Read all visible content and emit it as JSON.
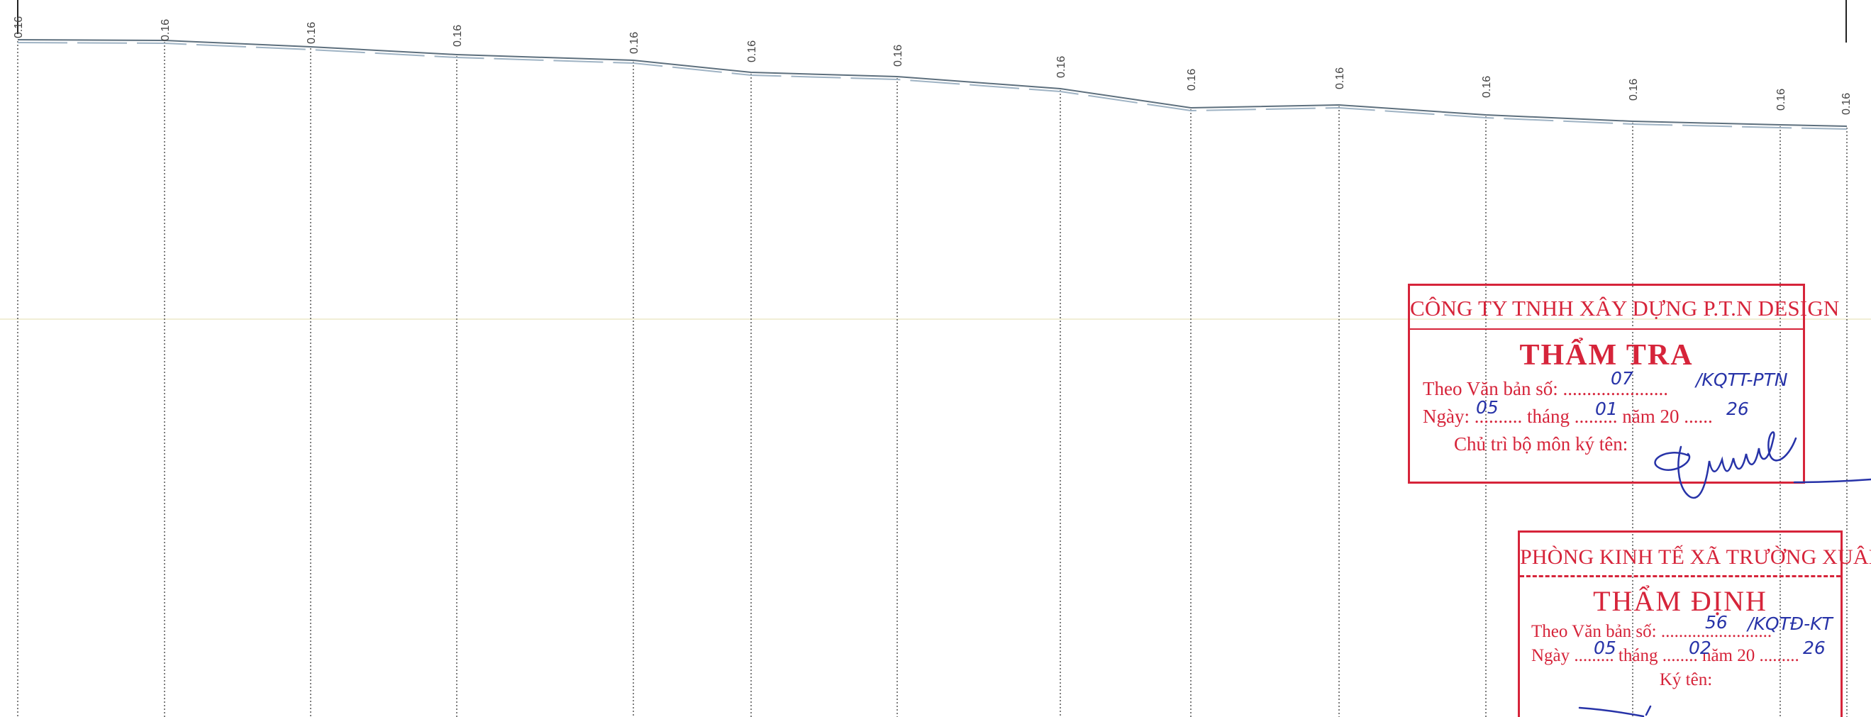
{
  "profile": {
    "elevation_labels": [
      "0.16",
      "0.16",
      "0.16",
      "0.16",
      "0.16",
      "0.16",
      "0.16",
      "0.16",
      "0.16",
      "0.16",
      "0.16",
      "0.16",
      "0.16",
      "0.16"
    ],
    "line_color": "#5d6f7d"
  },
  "stamp_review": {
    "organization": "CÔNG TY TNHH XÂY DỰNG P.T.N DESIGN",
    "heading": "THẨM TRA",
    "doc_no_label": "Theo Văn bản số:",
    "doc_no_value": "07",
    "doc_no_suffix": "/KQTT-PTN",
    "date_day_label": "Ngày:",
    "date_day": "05",
    "date_month_label": "tháng",
    "date_month": "01",
    "date_year_label": "năm 20",
    "date_year": "26",
    "signer_label": "Chủ trì bộ môn ký tên:",
    "color": "#d6243a"
  },
  "stamp_appraisal": {
    "organization": "PHÒNG KINH TẾ XÃ TRƯỜNG XUÂN",
    "heading": "THẨM ĐỊNH",
    "doc_no_label": "Theo Văn bản số:",
    "doc_no_value": "56",
    "doc_no_suffix": "/KQTĐ-KT",
    "date_day_label": "Ngày",
    "date_day": "05",
    "date_month_label": "tháng",
    "date_month": "02",
    "date_year_label": "năm 20",
    "date_year": "26",
    "signer_label": "Ký tên:",
    "color": "#d6243a"
  }
}
